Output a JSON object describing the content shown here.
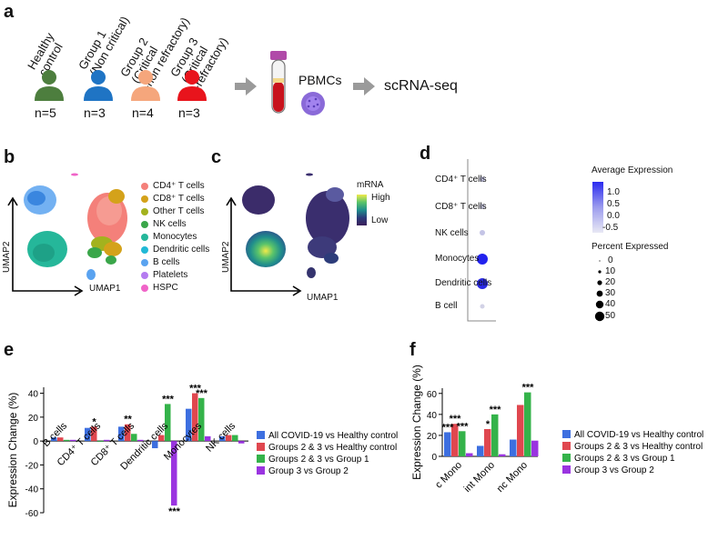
{
  "panels": {
    "a": "a",
    "b": "b",
    "c": "c",
    "d": "d",
    "e": "e",
    "f": "f"
  },
  "panel_a": {
    "groups": [
      {
        "label": "Healthy\ncontrol",
        "n": "n=5",
        "color": "#4d7e3e"
      },
      {
        "label": "Group 1\n(Non critical)",
        "n": "n=3",
        "color": "#1f74c4"
      },
      {
        "label": "Group 2\n(Critical\n-non refractory)",
        "n": "n=4",
        "color": "#f5a67c"
      },
      {
        "label": "Group 3\n(Critical\n-refractory)",
        "n": "n=3",
        "color": "#e8141c"
      }
    ],
    "pbmc_label": "PBMCs",
    "seq_label": "scRNA-seq"
  },
  "panel_b": {
    "xaxis": "UMAP1",
    "yaxis": "UMAP2",
    "legend": [
      {
        "label": "CD4⁺ T cells",
        "color": "#f4807a"
      },
      {
        "label": "CD8⁺ T cells",
        "color": "#d4a21a"
      },
      {
        "label": "Other T cells",
        "color": "#a3b21e"
      },
      {
        "label": "NK cells",
        "color": "#3aa64a"
      },
      {
        "label": "Monocytes",
        "color": "#25b79a"
      },
      {
        "label": "Dendritic cells",
        "color": "#21b9d6"
      },
      {
        "label": "B cells",
        "color": "#5aa3f0"
      },
      {
        "label": "Platelets",
        "color": "#b57cf0"
      },
      {
        "label": "HSPC",
        "color": "#f064c8"
      }
    ]
  },
  "panel_c": {
    "xaxis": "UMAP1",
    "yaxis": "UMAP2",
    "legend_title": "mRNA",
    "high": "High",
    "low": "Low"
  },
  "panel_d": {
    "rows": [
      {
        "label": "CD4⁺ T cells",
        "color": "#c9c9e8",
        "size": 3
      },
      {
        "label": "CD8⁺ T cells",
        "color": "#cfcfe6",
        "size": 3
      },
      {
        "label": "NK cells",
        "color": "#c4c4e6",
        "size": 3
      },
      {
        "label": "Monocytes",
        "color": "#2222ee",
        "size": 6
      },
      {
        "label": "Dendritic cells",
        "color": "#2a2ae6",
        "size": 6
      },
      {
        "label": "B cell",
        "color": "#d2d2e6",
        "size": 2.5
      }
    ],
    "avg_title": "Average Expression",
    "avg_ticks": [
      "1.0",
      "0.5",
      "0.0",
      "-0.5"
    ],
    "pct_title": "Percent Expressed",
    "pct_ticks": [
      "0",
      "10",
      "20",
      "30",
      "40",
      "50"
    ]
  },
  "chart_data": [
    {
      "type": "bar",
      "panel": "e",
      "ylabel": "Expression Change (%)",
      "ylim": [
        -60,
        45
      ],
      "yticks": [
        -60,
        -40,
        -20,
        0,
        20,
        40
      ],
      "categories": [
        "B cells",
        "CD4⁺ T cells",
        "CD8⁺ T cells",
        "Dendritic cells",
        "Monocytes",
        "NK cells"
      ],
      "series": [
        {
          "name": "All COVID-19 vs Healthy control",
          "color": "#3d6fe0",
          "values": [
            3,
            11,
            12,
            -6,
            27,
            4
          ]
        },
        {
          "name": "Groups 2 & 3 vs Healthy control",
          "color": "#e0474f",
          "values": [
            3,
            12,
            14,
            5,
            40,
            5
          ]
        },
        {
          "name": "Groups 2 & 3 vs Group 1",
          "color": "#34b34a",
          "values": [
            1,
            0,
            6,
            31,
            36,
            5
          ]
        },
        {
          "name": "Group 3 vs Group 2",
          "color": "#9a34e0",
          "values": [
            1,
            1,
            1,
            -54,
            4,
            -2
          ]
        }
      ],
      "annotations": [
        {
          "cat": 1,
          "series": 1,
          "text": "*"
        },
        {
          "cat": 2,
          "series": 1,
          "text": "**"
        },
        {
          "cat": 3,
          "series": 2,
          "text": "***"
        },
        {
          "cat": 3,
          "series": 3,
          "text": "***"
        },
        {
          "cat": 4,
          "series": 1,
          "text": "***"
        },
        {
          "cat": 4,
          "series": 2,
          "text": "***"
        }
      ]
    },
    {
      "type": "bar",
      "panel": "f",
      "ylabel": "Expression Change (%)",
      "ylim": [
        0,
        65
      ],
      "yticks": [
        0,
        20,
        40,
        60
      ],
      "categories": [
        "c Mono",
        "int Mono",
        "nc Mono"
      ],
      "series": [
        {
          "name": "All COVID-19 vs Healthy control",
          "color": "#3d6fe0",
          "values": [
            23,
            10,
            16
          ]
        },
        {
          "name": "Groups 2 & 3 vs Healthy control",
          "color": "#e0474f",
          "values": [
            31,
            26,
            49
          ]
        },
        {
          "name": "Groups 2 & 3 vs Group 1",
          "color": "#34b34a",
          "values": [
            24,
            40,
            61
          ]
        },
        {
          "name": "Group 3 vs Group 2",
          "color": "#9a34e0",
          "values": [
            3,
            2,
            15
          ]
        }
      ],
      "annotations": [
        {
          "cat": 0,
          "series": 0,
          "text": "***"
        },
        {
          "cat": 0,
          "series": 1,
          "text": "***"
        },
        {
          "cat": 0,
          "series": 2,
          "text": "***"
        },
        {
          "cat": 1,
          "series": 1,
          "text": "*"
        },
        {
          "cat": 1,
          "series": 2,
          "text": "***"
        },
        {
          "cat": 2,
          "series": 2,
          "text": "***"
        }
      ]
    }
  ]
}
